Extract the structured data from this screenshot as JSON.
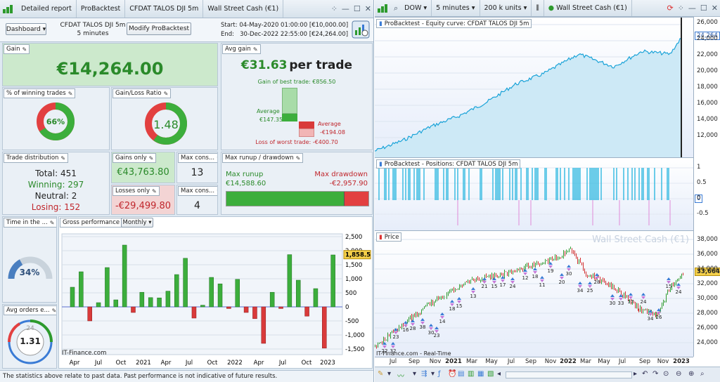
{
  "left_title": {
    "tabs": [
      "Detailed report",
      "ProBacktest",
      "CFDAT TALOS DJI 5m",
      "Wall Street Cash (€1)"
    ]
  },
  "header": {
    "dashboard": "Dashboard",
    "strategy": "CFDAT TALOS DJI 5m",
    "timeframe": "5 minutes",
    "modify": "Modify ProBacktest",
    "start_label": "Start:",
    "start_value": "04-May-2020 01:00:00 [€10,000.00]",
    "end_label": "End:",
    "end_value": "30-Dec-2022 22:55:00 [€24,264.00]"
  },
  "gain": {
    "label": "Gain",
    "value": "€14,264.00"
  },
  "avg_gain": {
    "label": "Avg gain",
    "value": "€31.63",
    "suffix": "per trade",
    "best": "Gain of best trade: €856.50",
    "average_label": "Average",
    "avg_pos": "€147.35",
    "avg_neg": "-€194.08",
    "worst": "Loss of worst trade: -€400.70"
  },
  "winning_pct": {
    "label": "% of winning trades",
    "value": "66%",
    "fraction": 0.66
  },
  "gain_loss_ratio": {
    "label": "Gain/Loss Ratio",
    "value": "1.48",
    "fraction": 0.6
  },
  "trade_dist": {
    "label": "Trade distribution",
    "total": "Total: 451",
    "winning": "Winning: 297",
    "neutral": "Neutral: 2",
    "losing": "Losing: 152"
  },
  "gains_only": {
    "label": "Gains only",
    "value": "€43,763.80"
  },
  "losses_only": {
    "label": "Losses only",
    "value": "-€29,499.80"
  },
  "max_cons_1": {
    "label": "Max cons...",
    "value": "13"
  },
  "max_cons_2": {
    "label": "Max cons...",
    "value": "4"
  },
  "runup": {
    "label": "Max runup / drawdown",
    "runup_label": "Max runup",
    "runup_value": "€14,588.60",
    "dd_label": "Max drawdown",
    "dd_value": "-€2,957.90",
    "runup_fraction": 0.83
  },
  "time_in": {
    "label": "Time in the ...",
    "value": "34%",
    "fraction": 0.34
  },
  "avg_orders": {
    "label": "Avg orders e...",
    "value": "1.31",
    "clock": "24"
  },
  "gross": {
    "label": "Gross performance",
    "period": "Monthly",
    "credit": "IT-Finance.com",
    "chart_data": {
      "type": "bar",
      "ylim": [
        -1700,
        2600
      ],
      "yticks": [
        "2,500",
        "2,000",
        "1,500",
        "1,000",
        "500",
        "0",
        "-500",
        "-1,000",
        "-1,500"
      ],
      "last_value": "1,858.5",
      "values": [
        700,
        1250,
        -500,
        150,
        1400,
        250,
        2200,
        -200,
        520,
        330,
        320,
        560,
        1150,
        1730,
        -400,
        60,
        1050,
        820,
        -60,
        980,
        -200,
        -420,
        -1300,
        520,
        -60,
        1860,
        950,
        -330,
        650,
        -1470,
        1850
      ],
      "xticks": [
        "Apr",
        "Jul",
        "Oct",
        "2021",
        "Apr",
        "Jul",
        "Oct",
        "2022",
        "Apr",
        "Jul",
        "Oct",
        "2023"
      ]
    }
  },
  "footer": "The statistics above relate to past data. Past performance is not indicative of future results.",
  "right_title": {
    "symbol": "DOW",
    "timeframe": "5 minutes",
    "units": "200 k units",
    "instrument": "Wall Street Cash (€1)"
  },
  "equity": {
    "label": "ProBacktest - Equity curve: CFDAT TALOS DJI 5m",
    "last": "24,264",
    "yticks": [
      "26,000",
      "24,000",
      "22,000",
      "20,000",
      "18,000",
      "16,000",
      "14,000",
      "12,000"
    ]
  },
  "positions": {
    "label": "ProBacktest - Positions: CFDAT TALOS DJI 5m",
    "yticks": [
      "1",
      "0.5",
      "0",
      "-0.5"
    ],
    "zero": "0"
  },
  "price": {
    "label": "Price",
    "watermark": "Wall Street Cash (€1)",
    "last": "33,664.5",
    "credit": "IT-Finance.com - Real-Time",
    "yticks": [
      "38,000",
      "36,000",
      "34,000",
      "32,000",
      "30,000",
      "28,000",
      "26,000",
      "24,000"
    ],
    "counts": [
      "22",
      "32",
      "23",
      "16",
      "28",
      "38",
      "30",
      "23",
      "14",
      "18",
      "15",
      "13",
      "21",
      "15",
      "17",
      "24",
      "12",
      "18",
      "11",
      "19",
      "20",
      "30",
      "34",
      "25",
      "28",
      "30",
      "33",
      "17",
      "24",
      "34",
      "26",
      "15",
      "24"
    ],
    "xticks": [
      "Jul",
      "Sep",
      "Nov",
      "2021",
      "Mar",
      "May",
      "Jul",
      "Sep",
      "Nov",
      "2022",
      "Mar",
      "May",
      "Jul",
      "Sep",
      "Nov",
      "2023"
    ]
  }
}
